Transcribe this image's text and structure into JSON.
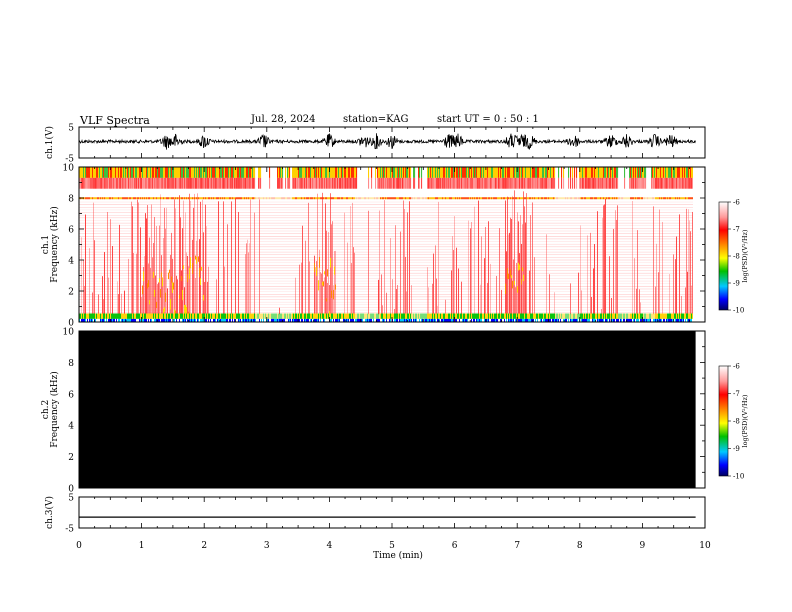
{
  "header": {
    "title": "VLF Spectra",
    "date": "Jul. 28, 2024",
    "station": "station=KAG",
    "start": "start UT =  0 : 50 : 1"
  },
  "chart_data": {
    "type": "spectrogram",
    "x_axis": {
      "label": "Time (min)",
      "ticks": [
        "0",
        "1",
        "2",
        "3",
        "4",
        "5",
        "6",
        "7",
        "8",
        "9",
        "10"
      ],
      "range": [
        0,
        10
      ],
      "data_extent": [
        0,
        9.85
      ]
    },
    "panels": [
      {
        "id": "ch1_waveform",
        "ylabel": "ch.1(V)",
        "ylim": [
          -5,
          5
        ],
        "yticks": [
          "5",
          "-5"
        ],
        "bursts_min": [
          1.4,
          1.55,
          2.0,
          2.95,
          4.0,
          4.55,
          4.75,
          5.0,
          5.9,
          6.05,
          6.9,
          7.05,
          7.2,
          7.9,
          8.5,
          8.75,
          9.2,
          9.45
        ]
      },
      {
        "id": "ch1_spectrogram",
        "ylabel": "ch.1 Frequency (kHz)",
        "ylim": [
          0,
          10
        ],
        "yticks": [
          "0",
          "2",
          "4",
          "6",
          "8",
          "10"
        ],
        "intense_intervals_min": [
          [
            1.0,
            2.05
          ],
          [
            3.75,
            4.1
          ],
          [
            6.8,
            7.15
          ]
        ],
        "quiet_intervals_min": [
          [
            2.8,
            3.4
          ],
          [
            4.4,
            4.8
          ],
          [
            5.3,
            5.55
          ],
          [
            7.6,
            8.0
          ],
          [
            8.6,
            8.8
          ],
          [
            9.0,
            9.2
          ]
        ],
        "colorbar": {
          "label": "log(PSD)(V²/Hz)",
          "ticks": [
            "-6",
            "-7",
            "-8",
            "-9",
            "-10"
          ],
          "range": [
            -10,
            -6
          ]
        }
      },
      {
        "id": "ch2_spectrogram",
        "ylabel": "ch.2 Frequency (kHz)",
        "ylim": [
          0,
          10
        ],
        "yticks": [
          "0",
          "2",
          "4",
          "6",
          "8",
          "10"
        ],
        "fill": "#000000",
        "colorbar": {
          "label": "log(PSD)(V²/Hz)",
          "ticks": [
            "-6",
            "-7",
            "-8",
            "-9",
            "-10"
          ],
          "range": [
            -10,
            -6
          ]
        }
      },
      {
        "id": "ch3_waveform",
        "ylabel": "ch.3(V)",
        "ylim": [
          -5,
          5
        ],
        "yticks": [
          "5",
          "-5"
        ],
        "constant_value": -1.5
      }
    ]
  }
}
